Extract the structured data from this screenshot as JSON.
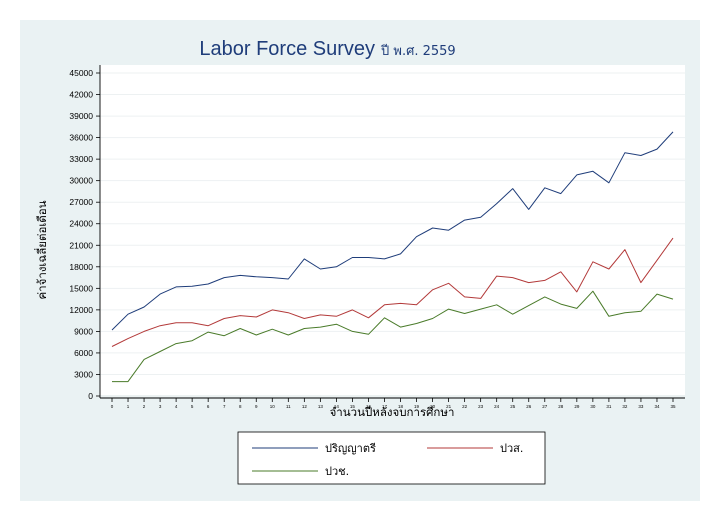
{
  "chart_data": {
    "type": "line",
    "title": "Labor Force Survey",
    "subtitle": "ปี พ.ศ. 2559",
    "xlabel": "จำนวนปีหลังจบการศึกษา",
    "ylabel": "ค่าจ้างเฉลี่ยต่อเดือน",
    "x": [
      0,
      1,
      2,
      3,
      4,
      5,
      6,
      7,
      8,
      9,
      10,
      11,
      12,
      13,
      14,
      15,
      16,
      17,
      18,
      19,
      20,
      21,
      22,
      23,
      24,
      25,
      26,
      27,
      28,
      29,
      30,
      31,
      32,
      33,
      34,
      35
    ],
    "yticks": [
      0,
      3000,
      6000,
      9000,
      12000,
      15000,
      18000,
      21000,
      24000,
      27000,
      30000,
      33000,
      36000,
      39000,
      42000,
      45000
    ],
    "ylim": [
      0,
      45000
    ],
    "grid": true,
    "legend_position": "bottom",
    "series": [
      {
        "name": "ปริญญาตรี",
        "color": "#1f3d7a",
        "values": [
          9200,
          11400,
          12400,
          14200,
          15200,
          15300,
          15600,
          16500,
          16800,
          16600,
          16500,
          16300,
          19100,
          17700,
          18000,
          19300,
          19300,
          19100,
          19800,
          22200,
          23400,
          23100,
          24500,
          24900,
          26800,
          28900,
          26000,
          29000,
          28200,
          30800,
          31300,
          29700,
          33900,
          33500,
          34400,
          36800
        ]
      },
      {
        "name": "ปวส.",
        "color": "#b33a3a",
        "values": [
          6900,
          8000,
          9000,
          9800,
          10200,
          10200,
          9800,
          10800,
          11200,
          11000,
          12000,
          11600,
          10800,
          11300,
          11100,
          12000,
          10900,
          12700,
          12900,
          12700,
          14800,
          15700,
          13800,
          13600,
          16700,
          16500,
          15800,
          16100,
          17300,
          14500,
          18700,
          17700,
          20400,
          15800,
          18900,
          22000
        ]
      },
      {
        "name": "ปวช.",
        "color": "#4a7b2a",
        "values": [
          2000,
          2000,
          5100,
          6200,
          7300,
          7700,
          8900,
          8400,
          9400,
          8500,
          9300,
          8500,
          9400,
          9600,
          10000,
          9000,
          8600,
          10900,
          9600,
          10100,
          10800,
          12100,
          11500,
          12100,
          12700,
          11400,
          12600,
          13800,
          12800,
          12200,
          14600,
          11100,
          11600,
          11800,
          14200,
          13500
        ]
      }
    ]
  }
}
